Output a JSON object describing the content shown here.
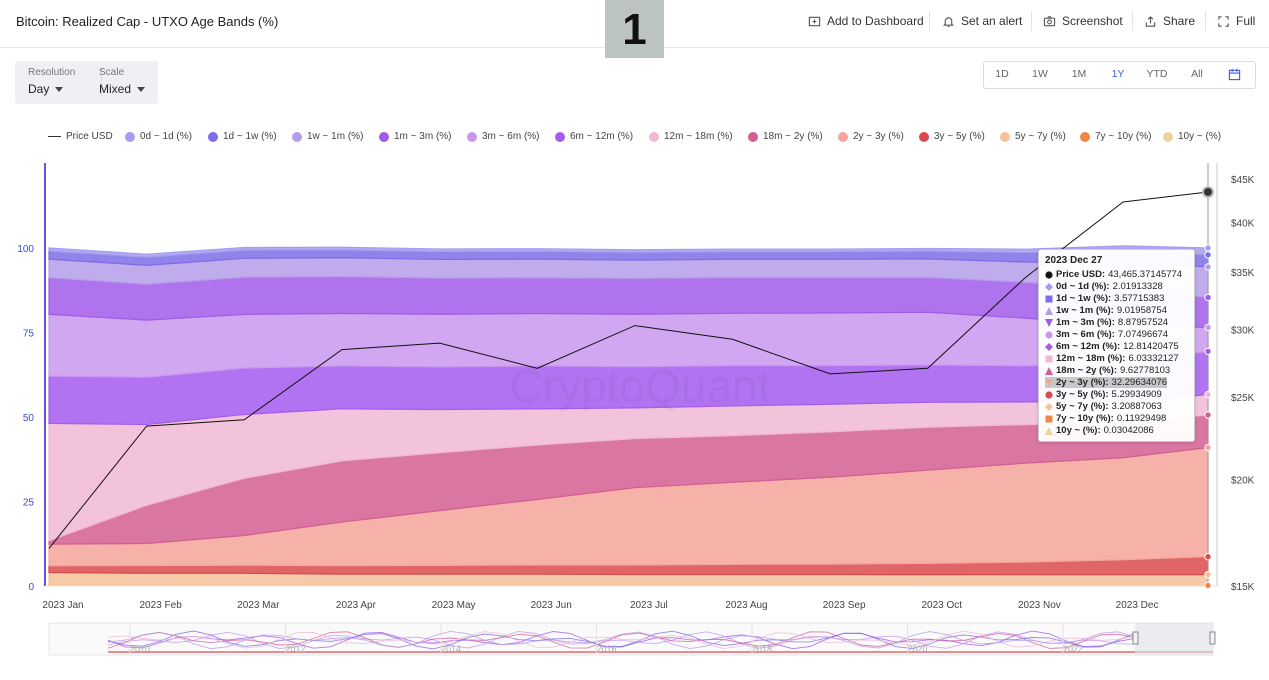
{
  "header": {
    "title": "Bitcoin: Realized Cap - UTXO Age Bands (%)",
    "badge": "1",
    "actions": [
      {
        "label": "Add to Dashboard",
        "icon": "add-dashboard-icon"
      },
      {
        "label": "Set an alert",
        "icon": "bell-icon"
      },
      {
        "label": "Screenshot",
        "icon": "camera-icon"
      },
      {
        "label": "Share",
        "icon": "share-icon"
      },
      {
        "label": "Full",
        "icon": "fullscreen-icon"
      }
    ]
  },
  "controls": {
    "resolution_label": "Resolution",
    "resolution_value": "Day",
    "scale_label": "Scale",
    "scale_value": "Mixed"
  },
  "ranges": {
    "items": [
      "1D",
      "1W",
      "1M",
      "1Y",
      "YTD",
      "All"
    ],
    "active": "1Y",
    "calendar_icon": "calendar-icon"
  },
  "colors": {
    "accent": "#3b5bdb",
    "price_line": "#111111"
  },
  "chart_data": {
    "type": "area",
    "title": "Bitcoin: Realized Cap - UTXO Age Bands (%)",
    "watermark": "CryptoQuant",
    "stacking": "stacked-percent",
    "ylim_left": [
      0,
      100
    ],
    "left_ticks": [
      "0",
      "25",
      "50",
      "75",
      "100"
    ],
    "right_ticks": [
      "$15K",
      "$20K",
      "$25K",
      "$30K",
      "$35K",
      "$40K",
      "$45K"
    ],
    "ylim_right_usd": [
      15000,
      47000
    ],
    "right_scale": "log",
    "x_ticks": [
      "2023 Jan",
      "2023 Feb",
      "2023 Mar",
      "2023 Apr",
      "2023 May",
      "2023 Jun",
      "2023 Jul",
      "2023 Aug",
      "2023 Sep",
      "2023 Oct",
      "2023 Nov",
      "2023 Dec"
    ],
    "grid": false,
    "legend_position": "top",
    "navigator_ticks": [
      "2010",
      "2012",
      "2014",
      "2016",
      "2018",
      "2020",
      "2022"
    ],
    "x_index": [
      0,
      1,
      2,
      3,
      4,
      5,
      6,
      7,
      8,
      9,
      10,
      11,
      11.87
    ],
    "series": [
      {
        "name": "Price USD",
        "color": "#222222",
        "kind": "line",
        "values": [
          16600,
          23100,
          23500,
          28400,
          28900,
          27000,
          30300,
          29200,
          26600,
          27000,
          34500,
          42300,
          43465
        ]
      },
      {
        "name": "0d ~ 1d (%)",
        "color": "#a59cf0",
        "values": [
          0.9,
          0.9,
          0.8,
          0.8,
          0.8,
          0.8,
          0.8,
          0.8,
          0.8,
          0.8,
          1.0,
          1.6,
          2.02
        ]
      },
      {
        "name": "1d ~ 1w (%)",
        "color": "#7c6ee6",
        "values": [
          2.4,
          2.4,
          2.4,
          2.3,
          2.3,
          2.3,
          2.3,
          2.2,
          2.2,
          2.3,
          2.8,
          3.4,
          3.58
        ]
      },
      {
        "name": "1w ~ 1m (%)",
        "color": "#b59ce9",
        "values": [
          5.5,
          5.6,
          5.6,
          5.6,
          5.5,
          5.5,
          5.4,
          5.4,
          5.4,
          5.5,
          6.0,
          8.0,
          9.02
        ]
      },
      {
        "name": "1m ~ 3m (%)",
        "color": "#a15bea",
        "values": [
          10.8,
          10.6,
          11.0,
          10.9,
          10.7,
          10.6,
          10.6,
          10.6,
          10.5,
          10.3,
          10.6,
          10.5,
          8.88
        ]
      },
      {
        "name": "3m ~ 6m (%)",
        "color": "#c998ee",
        "values": [
          18.3,
          16.9,
          15.9,
          15.5,
          15.6,
          15.5,
          15.5,
          15.5,
          15.6,
          15.6,
          14.1,
          11.2,
          7.07
        ]
      },
      {
        "name": "6m ~ 12m (%)",
        "color": "#a45bf0",
        "values": [
          14.0,
          14.0,
          13.7,
          12.7,
          12.6,
          12.7,
          12.2,
          11.9,
          11.4,
          11.0,
          10.7,
          11.4,
          12.81
        ]
      },
      {
        "name": "12m ~ 18m (%)",
        "color": "#f0b8d4",
        "values": [
          34.7,
          23.9,
          18.9,
          15.4,
          12.8,
          10.7,
          9.1,
          8.8,
          8.2,
          7.4,
          6.7,
          6.1,
          6.03
        ]
      },
      {
        "name": "18m ~ 2y (%)",
        "color": "#d45e92",
        "values": [
          1.0,
          11.3,
          16.9,
          18.1,
          17.1,
          16.1,
          14.5,
          13.8,
          13.4,
          12.7,
          11.4,
          10.5,
          9.63
        ]
      },
      {
        "name": "2y ~ 3y (%)",
        "color": "#f5a59a",
        "values": [
          6.4,
          6.5,
          8.8,
          12.9,
          16.2,
          19.4,
          22.9,
          24.3,
          25.7,
          27.6,
          29.3,
          30.2,
          32.3
        ]
      },
      {
        "name": "3y ~ 5y (%)",
        "color": "#da4a4c",
        "values": [
          2.0,
          2.3,
          2.4,
          2.5,
          2.6,
          2.7,
          2.8,
          3.0,
          3.1,
          3.3,
          3.7,
          4.4,
          5.3
        ]
      },
      {
        "name": "5y ~ 7y (%)",
        "color": "#f4c19a",
        "values": [
          3.7,
          3.5,
          3.5,
          3.3,
          3.3,
          3.3,
          3.2,
          3.2,
          3.2,
          3.2,
          3.2,
          3.2,
          3.21
        ]
      },
      {
        "name": "7y ~ 10y (%)",
        "color": "#ee8742",
        "values": [
          0.25,
          0.22,
          0.2,
          0.18,
          0.17,
          0.16,
          0.15,
          0.14,
          0.14,
          0.13,
          0.12,
          0.12,
          0.12
        ]
      },
      {
        "name": "10y ~ (%)",
        "color": "#ebd59a",
        "values": [
          0.05,
          0.05,
          0.05,
          0.04,
          0.04,
          0.04,
          0.04,
          0.04,
          0.04,
          0.04,
          0.03,
          0.03,
          0.03
        ]
      }
    ]
  },
  "tooltip": {
    "date": "2023 Dec 27",
    "highlighted": "2y ~ 3y (%)",
    "rows": [
      {
        "label": "Price USD",
        "value": "43,465.37145774",
        "color": "#111111",
        "marker": "circle"
      },
      {
        "label": "0d ~ 1d (%)",
        "value": "2.01913328",
        "color": "#a59cf0",
        "marker": "diamond"
      },
      {
        "label": "1d ~ 1w (%)",
        "value": "3.57715383",
        "color": "#7c6ee6",
        "marker": "square"
      },
      {
        "label": "1w ~ 1m (%)",
        "value": "9.01958754",
        "color": "#b59ce9",
        "marker": "triangle"
      },
      {
        "label": "1m ~ 3m (%)",
        "value": "8.87957524",
        "color": "#a15bea",
        "marker": "triangle-down"
      },
      {
        "label": "3m ~ 6m (%)",
        "value": "7.07496674",
        "color": "#c998ee",
        "marker": "circle"
      },
      {
        "label": "6m ~ 12m (%)",
        "value": "12.81420475",
        "color": "#a45bf0",
        "marker": "diamond"
      },
      {
        "label": "12m ~ 18m (%)",
        "value": "6.03332127",
        "color": "#f0b8d4",
        "marker": "square"
      },
      {
        "label": "18m ~ 2y (%)",
        "value": "9.62778103",
        "color": "#d45e92",
        "marker": "triangle"
      },
      {
        "label": "2y ~ 3y (%)",
        "value": "32.29634076",
        "color": "#f5a59a",
        "marker": "triangle-down"
      },
      {
        "label": "3y ~ 5y (%)",
        "value": "5.29934909",
        "color": "#da4a4c",
        "marker": "circle"
      },
      {
        "label": "5y ~ 7y (%)",
        "value": "3.20887063",
        "color": "#f4c19a",
        "marker": "diamond"
      },
      {
        "label": "7y ~ 10y (%)",
        "value": "0.11929498",
        "color": "#ee8742",
        "marker": "square"
      },
      {
        "label": "10y ~ (%)",
        "value": "0.03042086",
        "color": "#ebd59a",
        "marker": "triangle"
      }
    ]
  }
}
